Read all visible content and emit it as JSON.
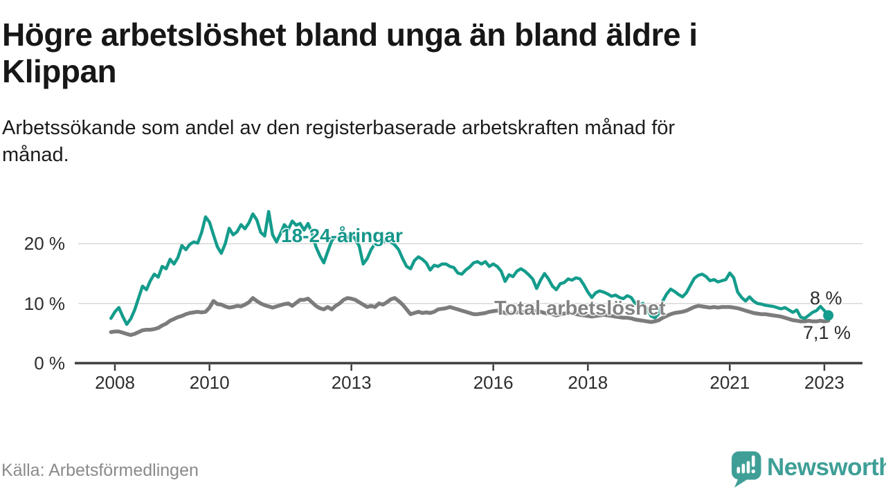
{
  "header": {
    "title_lines": [
      "Högre arbetslöshet bland unga än bland äldre i",
      "Klippan"
    ],
    "subtitle_lines": [
      "Arbetssökande som andel av den registerbaserade arbetskraften månad för",
      "månad."
    ]
  },
  "chart_data": {
    "type": "line",
    "unit": "percent of registered labour force",
    "frequency": "monthly",
    "x_start": "2007-12",
    "x_end": "2023-02",
    "ylim": [
      0,
      26
    ],
    "grid": "horizontal",
    "legend_position": "inline-labels",
    "y_ticks": [
      {
        "label": "0 %",
        "value": 0
      },
      {
        "label": "10 %",
        "value": 10
      },
      {
        "label": "20 %",
        "value": 20
      }
    ],
    "x_ticks": [
      {
        "label": "2008",
        "year": 2008
      },
      {
        "label": "2010",
        "year": 2010
      },
      {
        "label": "2013",
        "year": 2013
      },
      {
        "label": "2016",
        "year": 2016
      },
      {
        "label": "2018",
        "year": 2018
      },
      {
        "label": "2021",
        "year": 2021
      },
      {
        "label": "2023",
        "year": 2023
      }
    ],
    "series": [
      {
        "name": "18-24-åringar",
        "color": "#149c8c",
        "end_label": "8 %",
        "end_value": 8.0,
        "values": [
          7.5,
          8.6,
          9.3,
          7.8,
          6.5,
          7.4,
          8.9,
          10.9,
          12.9,
          12.3,
          13.8,
          14.9,
          14.4,
          16.2,
          15.8,
          17.4,
          16.6,
          17.7,
          19.7,
          19.0,
          19.9,
          20.3,
          20.1,
          21.9,
          24.5,
          23.6,
          21.5,
          19.5,
          18.4,
          20.0,
          22.6,
          21.5,
          22.0,
          23.2,
          22.5,
          23.5,
          25.0,
          24.0,
          21.9,
          21.3,
          25.4,
          21.5,
          20.3,
          21.7,
          23.2,
          22.4,
          23.8,
          23.1,
          23.4,
          22.3,
          23.4,
          21.8,
          19.5,
          18.0,
          16.8,
          18.7,
          20.5,
          21.2,
          20.8,
          21.4,
          21.0,
          21.5,
          20.8,
          19.6,
          16.6,
          17.5,
          19.0,
          20.0,
          20.6,
          20.2,
          20.8,
          20.3,
          19.8,
          19.0,
          17.5,
          16.2,
          15.8,
          17.2,
          17.8,
          17.4,
          16.8,
          15.6,
          16.4,
          16.2,
          16.6,
          16.6,
          16.2,
          16.0,
          15.1,
          14.9,
          15.6,
          16.1,
          16.8,
          17.0,
          16.6,
          17.0,
          16.2,
          16.6,
          16.2,
          15.4,
          13.7,
          14.8,
          14.5,
          15.4,
          15.8,
          15.4,
          14.8,
          14.1,
          12.5,
          13.9,
          15.0,
          14.1,
          12.9,
          12.3,
          13.3,
          13.5,
          14.1,
          13.9,
          14.3,
          14.1,
          13.1,
          11.9,
          11.0,
          11.8,
          12.1,
          11.9,
          11.6,
          11.2,
          11.4,
          11.0,
          10.8,
          11.3,
          11.0,
          10.0,
          9.8,
          10.0,
          9.1,
          7.9,
          7.6,
          8.3,
          10.4,
          11.6,
          12.4,
          12.0,
          11.5,
          11.1,
          11.8,
          13.0,
          14.2,
          14.7,
          14.9,
          14.5,
          13.8,
          14.0,
          13.6,
          13.8,
          14.0,
          15.1,
          14.3,
          11.9,
          11.0,
          10.4,
          11.1,
          10.4,
          10.0,
          9.9,
          9.7,
          9.6,
          9.5,
          9.3,
          9.1,
          9.3,
          8.9,
          8.5,
          8.9,
          7.7,
          7.5,
          8.0,
          8.5,
          8.8,
          9.5,
          8.8,
          8.0
        ]
      },
      {
        "name": "Total arbetslöshet",
        "color": "#7c7c7c",
        "end_label": "7,1 %",
        "end_value": 7.1,
        "values": [
          5.2,
          5.3,
          5.3,
          5.1,
          4.9,
          4.7,
          4.9,
          5.2,
          5.5,
          5.6,
          5.6,
          5.7,
          5.9,
          6.3,
          6.6,
          7.1,
          7.4,
          7.7,
          7.9,
          8.2,
          8.4,
          8.5,
          8.6,
          8.5,
          8.6,
          9.3,
          10.4,
          9.9,
          9.8,
          9.5,
          9.3,
          9.4,
          9.6,
          9.5,
          9.8,
          10.2,
          10.9,
          10.4,
          10.0,
          9.7,
          9.5,
          9.3,
          9.5,
          9.7,
          9.9,
          10.0,
          9.6,
          10.1,
          10.6,
          10.6,
          10.8,
          10.2,
          9.6,
          9.2,
          9.0,
          9.4,
          9.0,
          9.6,
          10.0,
          10.6,
          10.9,
          10.8,
          10.6,
          10.2,
          9.8,
          9.4,
          9.6,
          9.4,
          10.0,
          9.8,
          10.2,
          10.7,
          10.9,
          10.4,
          9.8,
          9.0,
          8.2,
          8.4,
          8.6,
          8.4,
          8.5,
          8.4,
          8.6,
          9.0,
          9.1,
          9.2,
          9.4,
          9.2,
          9.0,
          8.8,
          8.6,
          8.4,
          8.2,
          8.2,
          8.3,
          8.4,
          8.6,
          8.7,
          8.8,
          8.6,
          8.4,
          8.3,
          8.4,
          8.5,
          8.6,
          8.5,
          8.6,
          8.7,
          8.8,
          8.6,
          8.4,
          8.3,
          8.2,
          8.0,
          8.2,
          8.3,
          8.4,
          8.3,
          8.2,
          8.1,
          8.0,
          7.9,
          7.8,
          7.9,
          8.0,
          8.1,
          8.0,
          7.9,
          7.8,
          7.7,
          7.6,
          7.6,
          7.5,
          7.3,
          7.2,
          7.1,
          7.0,
          6.9,
          7.0,
          7.2,
          7.6,
          7.9,
          8.2,
          8.4,
          8.5,
          8.6,
          8.8,
          9.1,
          9.4,
          9.6,
          9.5,
          9.4,
          9.3,
          9.4,
          9.3,
          9.4,
          9.4,
          9.4,
          9.3,
          9.2,
          9.0,
          8.8,
          8.6,
          8.4,
          8.3,
          8.2,
          8.2,
          8.1,
          8.0,
          7.9,
          7.8,
          7.6,
          7.4,
          7.2,
          7.1,
          7.0,
          7.0,
          7.1,
          7.0,
          7.0,
          7.1,
          7.0,
          7.1
        ]
      }
    ]
  },
  "footer": {
    "source": "Källa: Arbetsförmedlingen",
    "brand": {
      "name": "Newsworthy",
      "color": "#3f9f97",
      "icon": "bar-chart-speech-bubble"
    }
  },
  "colors": {
    "accent_teal": "#149c8c",
    "series_gray": "#7c7c7c",
    "axis": "#3d3d3d",
    "gridline": "#d7d7d7",
    "text_dark": "#171717",
    "text_muted": "#8a8a8a"
  }
}
